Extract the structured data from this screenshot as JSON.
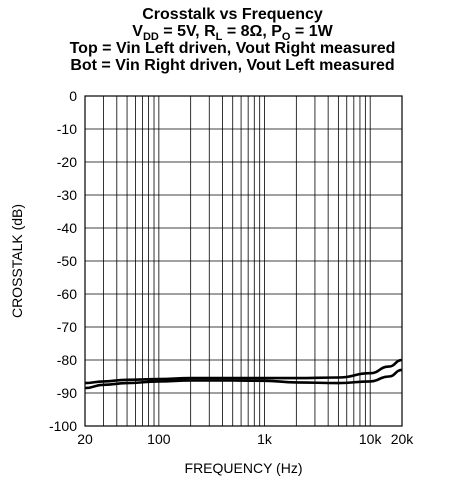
{
  "chart_data": {
    "type": "line",
    "title_lines": {
      "line1": "Crosstalk vs Frequency",
      "line2": {
        "vdd_v": "V",
        "vdd_sub": "DD",
        "vdd_val": " = 5V, ",
        "rl_r": "R",
        "rl_sub": "L",
        "rl_val": " = 8Ω, ",
        "po_p": "P",
        "po_sub": "O",
        "po_val": " = 1W"
      },
      "line3": "Top = Vin Left driven, Vout Right measured",
      "line4": "Bot = Vin Right driven, Vout Left measured"
    },
    "xlabel": "FREQUENCY (Hz)",
    "ylabel": "CROSSTALK (dB)",
    "xscale": "log",
    "xlim": [
      20,
      20000
    ],
    "ylim": [
      -100,
      0
    ],
    "x_tick_values": [
      20,
      100,
      1000,
      10000,
      20000
    ],
    "x_tick_labels": [
      "20",
      "100",
      "1k",
      "10k",
      "20k"
    ],
    "y_tick_values": [
      0,
      -10,
      -20,
      -30,
      -40,
      -50,
      -60,
      -70,
      -80,
      -90,
      -100
    ],
    "y_tick_labels": [
      "0",
      "-10",
      "-20",
      "-30",
      "-40",
      "-50",
      "-60",
      "-70",
      "-80",
      "-90",
      "-100"
    ],
    "grid": true,
    "series": [
      {
        "x": [
          20,
          30,
          50,
          100,
          200,
          500,
          1000,
          2000,
          5000,
          10000,
          15000,
          20000
        ],
        "y": [
          -87,
          -86.5,
          -86,
          -85.8,
          -85.5,
          -85.5,
          -85.5,
          -85.5,
          -85.3,
          -84,
          -82,
          -80
        ]
      },
      {
        "x": [
          20,
          30,
          50,
          100,
          200,
          500,
          1000,
          2000,
          5000,
          10000,
          15000,
          20000
        ],
        "y": [
          -88.5,
          -87.5,
          -87,
          -86.5,
          -86.2,
          -86.2,
          -86.3,
          -86.8,
          -87,
          -86.5,
          -85,
          -83
        ]
      }
    ],
    "line_color": "#000000"
  }
}
